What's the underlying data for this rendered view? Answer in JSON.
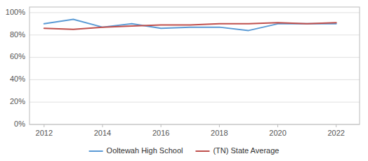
{
  "chart_data": {
    "type": "line",
    "x": [
      2012,
      2013,
      2014,
      2015,
      2016,
      2017,
      2018,
      2019,
      2020,
      2021,
      2022
    ],
    "series": [
      {
        "name": "Ooltewah High School",
        "color": "#5b9bd5",
        "values": [
          90,
          94,
          87,
          90,
          86,
          87,
          87,
          84,
          90,
          90,
          90
        ]
      },
      {
        "name": "(TN) State Average",
        "color": "#c0504d",
        "values": [
          86,
          85,
          87,
          88,
          89,
          89,
          90,
          90,
          91,
          90,
          91
        ]
      }
    ],
    "xlim": [
      2011.5,
      2022.8
    ],
    "xticks": [
      2012,
      2014,
      2016,
      2018,
      2020,
      2022
    ],
    "ylim": [
      0,
      105
    ],
    "yticks": [
      {
        "value": 0,
        "label": "0%"
      },
      {
        "value": 20,
        "label": "20%"
      },
      {
        "value": 40,
        "label": "40%"
      },
      {
        "value": 60,
        "label": "60%"
      },
      {
        "value": 80,
        "label": "80%"
      },
      {
        "value": 100,
        "label": "100%"
      }
    ],
    "grid": true,
    "legend": "bottom"
  }
}
